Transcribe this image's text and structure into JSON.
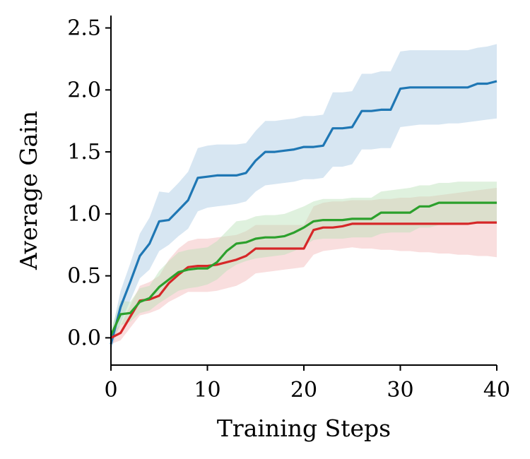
{
  "chart_data": {
    "type": "line",
    "title": "",
    "xlabel": "Training Steps",
    "ylabel": "Average Gain",
    "xlim": [
      0,
      40
    ],
    "ylim": [
      -0.22,
      2.6
    ],
    "xticks": [
      0,
      10,
      20,
      30,
      40
    ],
    "xtick_labels": [
      "0",
      "10",
      "20",
      "30",
      "40"
    ],
    "yticks": [
      0.0,
      0.5,
      1.0,
      1.5,
      2.0,
      2.5
    ],
    "ytick_labels": [
      "0.0",
      "0.5",
      "1.0",
      "1.5",
      "2.0",
      "2.5"
    ],
    "grid": false,
    "legend": "none",
    "x": [
      0,
      1,
      2,
      3,
      4,
      5,
      6,
      7,
      8,
      9,
      10,
      11,
      12,
      13,
      14,
      15,
      16,
      17,
      18,
      19,
      20,
      21,
      22,
      23,
      24,
      25,
      26,
      27,
      28,
      29,
      30,
      31,
      32,
      33,
      34,
      35,
      36,
      37,
      38,
      39,
      40
    ],
    "series": [
      {
        "color": "#1f77b4",
        "band_color": "#a6c8e3",
        "values": [
          -0.05,
          0.25,
          0.45,
          0.66,
          0.76,
          0.94,
          0.95,
          1.03,
          1.11,
          1.29,
          1.3,
          1.31,
          1.31,
          1.31,
          1.33,
          1.43,
          1.5,
          1.5,
          1.51,
          1.52,
          1.54,
          1.54,
          1.55,
          1.69,
          1.69,
          1.7,
          1.83,
          1.83,
          1.84,
          1.84,
          2.01,
          2.02,
          2.02,
          2.02,
          2.02,
          2.02,
          2.02,
          2.02,
          2.05,
          2.05,
          2.07
        ],
        "lower": [
          -0.1,
          0.12,
          0.3,
          0.48,
          0.55,
          0.7,
          0.75,
          0.82,
          0.88,
          1.02,
          1.05,
          1.06,
          1.07,
          1.08,
          1.1,
          1.18,
          1.23,
          1.24,
          1.25,
          1.26,
          1.28,
          1.28,
          1.29,
          1.38,
          1.38,
          1.4,
          1.52,
          1.52,
          1.53,
          1.53,
          1.7,
          1.71,
          1.72,
          1.72,
          1.72,
          1.73,
          1.73,
          1.74,
          1.75,
          1.76,
          1.77
        ],
        "upper": [
          0.02,
          0.38,
          0.6,
          0.84,
          0.97,
          1.18,
          1.17,
          1.25,
          1.34,
          1.53,
          1.55,
          1.56,
          1.56,
          1.56,
          1.57,
          1.67,
          1.75,
          1.75,
          1.76,
          1.77,
          1.79,
          1.79,
          1.8,
          1.98,
          1.98,
          1.99,
          2.13,
          2.13,
          2.15,
          2.15,
          2.31,
          2.32,
          2.32,
          2.32,
          2.32,
          2.32,
          2.32,
          2.32,
          2.34,
          2.35,
          2.37
        ]
      },
      {
        "color": "#d62728",
        "band_color": "#f2b5b5",
        "values": [
          0.0,
          0.04,
          0.17,
          0.3,
          0.31,
          0.34,
          0.44,
          0.51,
          0.57,
          0.58,
          0.58,
          0.59,
          0.61,
          0.63,
          0.66,
          0.72,
          0.72,
          0.72,
          0.72,
          0.72,
          0.72,
          0.87,
          0.89,
          0.89,
          0.9,
          0.92,
          0.92,
          0.92,
          0.92,
          0.92,
          0.92,
          0.92,
          0.92,
          0.92,
          0.92,
          0.92,
          0.92,
          0.92,
          0.93,
          0.93,
          0.93
        ],
        "lower": [
          -0.05,
          -0.02,
          0.08,
          0.18,
          0.2,
          0.23,
          0.29,
          0.33,
          0.37,
          0.37,
          0.37,
          0.38,
          0.4,
          0.42,
          0.46,
          0.52,
          0.53,
          0.54,
          0.55,
          0.56,
          0.57,
          0.67,
          0.7,
          0.71,
          0.72,
          0.73,
          0.72,
          0.72,
          0.71,
          0.71,
          0.7,
          0.7,
          0.69,
          0.69,
          0.68,
          0.68,
          0.67,
          0.67,
          0.66,
          0.66,
          0.65
        ],
        "upper": [
          0.05,
          0.1,
          0.26,
          0.42,
          0.45,
          0.5,
          0.63,
          0.72,
          0.78,
          0.8,
          0.8,
          0.81,
          0.82,
          0.83,
          0.86,
          0.91,
          0.91,
          0.91,
          0.91,
          0.91,
          0.91,
          1.06,
          1.09,
          1.1,
          1.1,
          1.11,
          1.11,
          1.11,
          1.12,
          1.12,
          1.13,
          1.13,
          1.14,
          1.14,
          1.15,
          1.16,
          1.17,
          1.18,
          1.19,
          1.2,
          1.21
        ]
      },
      {
        "color": "#2ca02c",
        "band_color": "#b9dfb5",
        "values": [
          0.02,
          0.19,
          0.2,
          0.29,
          0.32,
          0.41,
          0.47,
          0.53,
          0.55,
          0.56,
          0.56,
          0.61,
          0.7,
          0.76,
          0.77,
          0.8,
          0.81,
          0.81,
          0.82,
          0.85,
          0.89,
          0.94,
          0.95,
          0.95,
          0.95,
          0.96,
          0.96,
          0.96,
          1.01,
          1.01,
          1.01,
          1.01,
          1.06,
          1.06,
          1.09,
          1.09,
          1.09,
          1.09,
          1.09,
          1.09,
          1.09
        ],
        "lower": [
          -0.03,
          0.1,
          0.13,
          0.2,
          0.22,
          0.28,
          0.33,
          0.38,
          0.4,
          0.41,
          0.43,
          0.47,
          0.54,
          0.59,
          0.62,
          0.64,
          0.65,
          0.66,
          0.67,
          0.7,
          0.74,
          0.79,
          0.8,
          0.8,
          0.8,
          0.81,
          0.81,
          0.81,
          0.84,
          0.85,
          0.85,
          0.85,
          0.89,
          0.89,
          0.91,
          0.91,
          0.92,
          0.92,
          0.92,
          0.93,
          0.93
        ],
        "upper": [
          0.07,
          0.3,
          0.29,
          0.4,
          0.42,
          0.54,
          0.62,
          0.69,
          0.71,
          0.72,
          0.73,
          0.78,
          0.86,
          0.94,
          0.95,
          0.98,
          0.99,
          0.99,
          1.0,
          1.03,
          1.06,
          1.1,
          1.12,
          1.12,
          1.12,
          1.13,
          1.13,
          1.13,
          1.18,
          1.19,
          1.2,
          1.21,
          1.23,
          1.23,
          1.25,
          1.25,
          1.26,
          1.26,
          1.26,
          1.26,
          1.26
        ]
      }
    ]
  }
}
